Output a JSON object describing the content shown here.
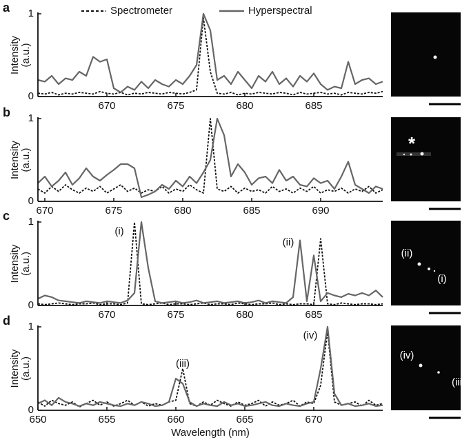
{
  "chart_data": [
    {
      "type": "line",
      "panel_label": "a",
      "ylabel": [
        "Intensity",
        "(a.u.)"
      ],
      "xlim": [
        665,
        690
      ],
      "xticks": [
        670,
        675,
        680,
        685
      ],
      "ylim": [
        0,
        1
      ],
      "yticks": [
        0,
        1
      ],
      "x": [
        665,
        665.5,
        666,
        666.5,
        667,
        667.5,
        668,
        668.5,
        669,
        669.5,
        670,
        670.5,
        671,
        671.5,
        672,
        672.5,
        673,
        673.5,
        674,
        674.5,
        675,
        675.5,
        676,
        676.5,
        677,
        677.5,
        678,
        678.5,
        679,
        679.5,
        680,
        680.5,
        681,
        681.5,
        682,
        682.5,
        683,
        683.5,
        684,
        684.5,
        685,
        685.5,
        686,
        686.5,
        687,
        687.5,
        688,
        688.5,
        689,
        689.5,
        690
      ],
      "series": [
        {
          "name": "Spectrometer",
          "color": "#111111",
          "style": "dashed",
          "values": [
            0.04,
            0.03,
            0.05,
            0.02,
            0.04,
            0.03,
            0.05,
            0.04,
            0.03,
            0.06,
            0.04,
            0.03,
            0.05,
            0.02,
            0.04,
            0.03,
            0.05,
            0.04,
            0.03,
            0.05,
            0.04,
            0.03,
            0.05,
            0.08,
            0.95,
            0.3,
            0.04,
            0.03,
            0.05,
            0.02,
            0.04,
            0.03,
            0.05,
            0.04,
            0.03,
            0.05,
            0.04,
            0.02,
            0.05,
            0.03,
            0.04,
            0.05,
            0.03,
            0.04,
            0.02,
            0.05,
            0.04,
            0.03,
            0.05,
            0.04,
            0.06
          ]
        },
        {
          "name": "Hyperspectral",
          "color": "#666666",
          "style": "solid",
          "values": [
            0.2,
            0.18,
            0.25,
            0.15,
            0.22,
            0.2,
            0.3,
            0.25,
            0.48,
            0.42,
            0.45,
            0.1,
            0.05,
            0.12,
            0.08,
            0.18,
            0.1,
            0.2,
            0.15,
            0.12,
            0.2,
            0.15,
            0.25,
            0.38,
            1,
            0.8,
            0.2,
            0.25,
            0.15,
            0.3,
            0.2,
            0.1,
            0.25,
            0.18,
            0.3,
            0.15,
            0.22,
            0.12,
            0.25,
            0.18,
            0.28,
            0.15,
            0.08,
            0.12,
            0.1,
            0.42,
            0.15,
            0.2,
            0.22,
            0.15,
            0.18
          ]
        }
      ],
      "annotations": [],
      "image_labels": []
    },
    {
      "type": "line",
      "panel_label": "b",
      "ylabel": [
        "Intensity",
        "(a.u.)"
      ],
      "xlim": [
        669.5,
        694.5
      ],
      "xticks": [
        670,
        675,
        680,
        685,
        690
      ],
      "ylim": [
        0,
        1
      ],
      "yticks": [
        0,
        1
      ],
      "x": [
        669.5,
        670,
        670.5,
        671,
        671.5,
        672,
        672.5,
        673,
        673.5,
        674,
        674.5,
        675,
        675.5,
        676,
        676.5,
        677,
        677.5,
        678,
        678.5,
        679,
        679.5,
        680,
        680.5,
        681,
        681.5,
        682,
        682.5,
        683,
        683.5,
        684,
        684.5,
        685,
        685.5,
        686,
        686.5,
        687,
        687.5,
        688,
        688.5,
        689,
        689.5,
        690,
        690.5,
        691,
        691.5,
        692,
        692.5,
        693,
        693.5,
        694,
        694.5
      ],
      "series": [
        {
          "name": "Spectrometer",
          "color": "#111111",
          "style": "dashed",
          "values": [
            0.15,
            0.1,
            0.18,
            0.12,
            0.2,
            0.14,
            0.1,
            0.16,
            0.12,
            0.18,
            0.1,
            0.15,
            0.2,
            0.12,
            0.16,
            0.1,
            0.14,
            0.12,
            0.18,
            0.1,
            0.15,
            0.12,
            0.2,
            0.14,
            0.1,
            1,
            0.15,
            0.12,
            0.18,
            0.1,
            0.16,
            0.12,
            0.14,
            0.1,
            0.18,
            0.12,
            0.15,
            0.1,
            0.16,
            0.12,
            0.18,
            0.1,
            0.14,
            0.12,
            0.16,
            0.1,
            0.15,
            0.12,
            0.18,
            0.1,
            0.14
          ]
        },
        {
          "name": "Hyperspectral",
          "color": "#666666",
          "style": "solid",
          "values": [
            0.22,
            0.3,
            0.18,
            0.25,
            0.35,
            0.2,
            0.28,
            0.4,
            0.3,
            0.25,
            0.32,
            0.38,
            0.45,
            0.45,
            0.4,
            0.05,
            0.08,
            0.12,
            0.2,
            0.15,
            0.25,
            0.18,
            0.3,
            0.22,
            0.35,
            0.5,
            1,
            0.8,
            0.3,
            0.45,
            0.35,
            0.2,
            0.28,
            0.3,
            0.22,
            0.38,
            0.25,
            0.3,
            0.2,
            0.18,
            0.28,
            0.22,
            0.25,
            0.15,
            0.3,
            0.48,
            0.2,
            0.15,
            0.1,
            0.18,
            0.15
          ]
        }
      ],
      "annotations": [],
      "image_labels": [
        "*"
      ]
    },
    {
      "type": "line",
      "panel_label": "c",
      "ylabel": [
        "Intensity",
        "(a.u.)"
      ],
      "xlim": [
        665,
        690
      ],
      "xticks": [
        670,
        675,
        680,
        685
      ],
      "ylim": [
        0,
        1
      ],
      "yticks": [
        0,
        1
      ],
      "x": [
        665,
        665.5,
        666,
        666.5,
        667,
        667.5,
        668,
        668.5,
        669,
        669.5,
        670,
        670.5,
        671,
        671.5,
        672,
        672.5,
        673,
        673.5,
        674,
        674.5,
        675,
        675.5,
        676,
        676.5,
        677,
        677.5,
        678,
        678.5,
        679,
        679.5,
        680,
        680.5,
        681,
        681.5,
        682,
        682.5,
        683,
        683.5,
        684,
        684.5,
        685,
        685.5,
        686,
        686.5,
        687,
        687.5,
        688,
        688.5,
        689,
        689.5,
        690
      ],
      "series": [
        {
          "name": "Spectrometer",
          "color": "#111111",
          "style": "dashed",
          "values": [
            0.02,
            0.01,
            0.02,
            0.03,
            0.02,
            0.01,
            0.02,
            0.02,
            0.03,
            0.01,
            0.02,
            0.02,
            0.01,
            0.03,
            1,
            0.02,
            0.01,
            0.02,
            0.03,
            0.01,
            0.02,
            0.02,
            0.01,
            0.02,
            0.03,
            0.01,
            0.02,
            0.02,
            0.01,
            0.03,
            0.02,
            0.01,
            0.02,
            0.02,
            0.03,
            0.01,
            0.02,
            0.01,
            0.02,
            0.02,
            0.01,
            0.8,
            0.02,
            0.01,
            0.03,
            0.02,
            0.01,
            0.02,
            0.02,
            0.01,
            0.02
          ]
        },
        {
          "name": "Hyperspectral",
          "color": "#666666",
          "style": "solid",
          "values": [
            0.08,
            0.12,
            0.1,
            0.06,
            0.05,
            0.04,
            0.03,
            0.05,
            0.04,
            0.03,
            0.05,
            0.04,
            0.03,
            0.06,
            0.15,
            1,
            0.45,
            0.05,
            0.03,
            0.04,
            0.05,
            0.03,
            0.04,
            0.06,
            0.03,
            0.04,
            0.05,
            0.03,
            0.04,
            0.05,
            0.03,
            0.04,
            0.06,
            0.03,
            0.05,
            0.04,
            0.03,
            0.1,
            0.78,
            0.05,
            0.6,
            0.05,
            0.15,
            0.12,
            0.1,
            0.14,
            0.12,
            0.15,
            0.12,
            0.18,
            0.1
          ]
        }
      ],
      "annotations": [
        "(i)",
        "(ii)"
      ],
      "image_labels": [
        "(ii)",
        "(i)"
      ]
    },
    {
      "type": "line",
      "panel_label": "d",
      "ylabel": [
        "Intensity",
        "(a.u.)"
      ],
      "xlabel": "Wavelength (nm)",
      "xlim": [
        650,
        675
      ],
      "xticks": [
        650,
        655,
        660,
        665,
        670
      ],
      "ylim": [
        0,
        1
      ],
      "yticks": [
        0,
        1
      ],
      "x": [
        650,
        650.5,
        651,
        651.5,
        652,
        652.5,
        653,
        653.5,
        654,
        654.5,
        655,
        655.5,
        656,
        656.5,
        657,
        657.5,
        658,
        658.5,
        659,
        659.5,
        660,
        660.5,
        661,
        661.5,
        662,
        662.5,
        663,
        663.5,
        664,
        664.5,
        665,
        665.5,
        666,
        666.5,
        667,
        667.5,
        668,
        668.5,
        669,
        669.5,
        670,
        670.5,
        671,
        671.5,
        672,
        672.5,
        673,
        673.5,
        674,
        674.5,
        675
      ],
      "series": [
        {
          "name": "Spectrometer",
          "color": "#111111",
          "style": "dashed",
          "values": [
            0.1,
            0.05,
            0.12,
            0.08,
            0.06,
            0.1,
            0.04,
            0.08,
            0.12,
            0.06,
            0.1,
            0.05,
            0.08,
            0.12,
            0.06,
            0.1,
            0.05,
            0.08,
            0.06,
            0.1,
            0.12,
            0.5,
            0.08,
            0.05,
            0.1,
            0.06,
            0.12,
            0.08,
            0.05,
            0.1,
            0.06,
            0.08,
            0.12,
            0.05,
            0.1,
            0.06,
            0.08,
            0.12,
            0.05,
            0.1,
            0.08,
            0.3,
            0.95,
            0.1,
            0.06,
            0.08,
            0.1,
            0.05,
            0.12,
            0.06,
            0.08
          ]
        },
        {
          "name": "Hyperspectral",
          "color": "#666666",
          "style": "solid",
          "values": [
            0.08,
            0.12,
            0.06,
            0.15,
            0.1,
            0.08,
            0.05,
            0.08,
            0.06,
            0.1,
            0.08,
            0.06,
            0.05,
            0.08,
            0.06,
            0.1,
            0.08,
            0.05,
            0.06,
            0.1,
            0.38,
            0.32,
            0.1,
            0.05,
            0.08,
            0.06,
            0.05,
            0.1,
            0.06,
            0.08,
            0.05,
            0.06,
            0.08,
            0.1,
            0.06,
            0.05,
            0.08,
            0.06,
            0.05,
            0.08,
            0.1,
            0.5,
            1,
            0.2,
            0.06,
            0.08,
            0.05,
            0.06,
            0.08,
            0.05,
            0.06
          ]
        }
      ],
      "annotations": [
        "(iii)",
        "(iv)"
      ],
      "image_labels": [
        "(iv)",
        "(iii)"
      ]
    }
  ]
}
